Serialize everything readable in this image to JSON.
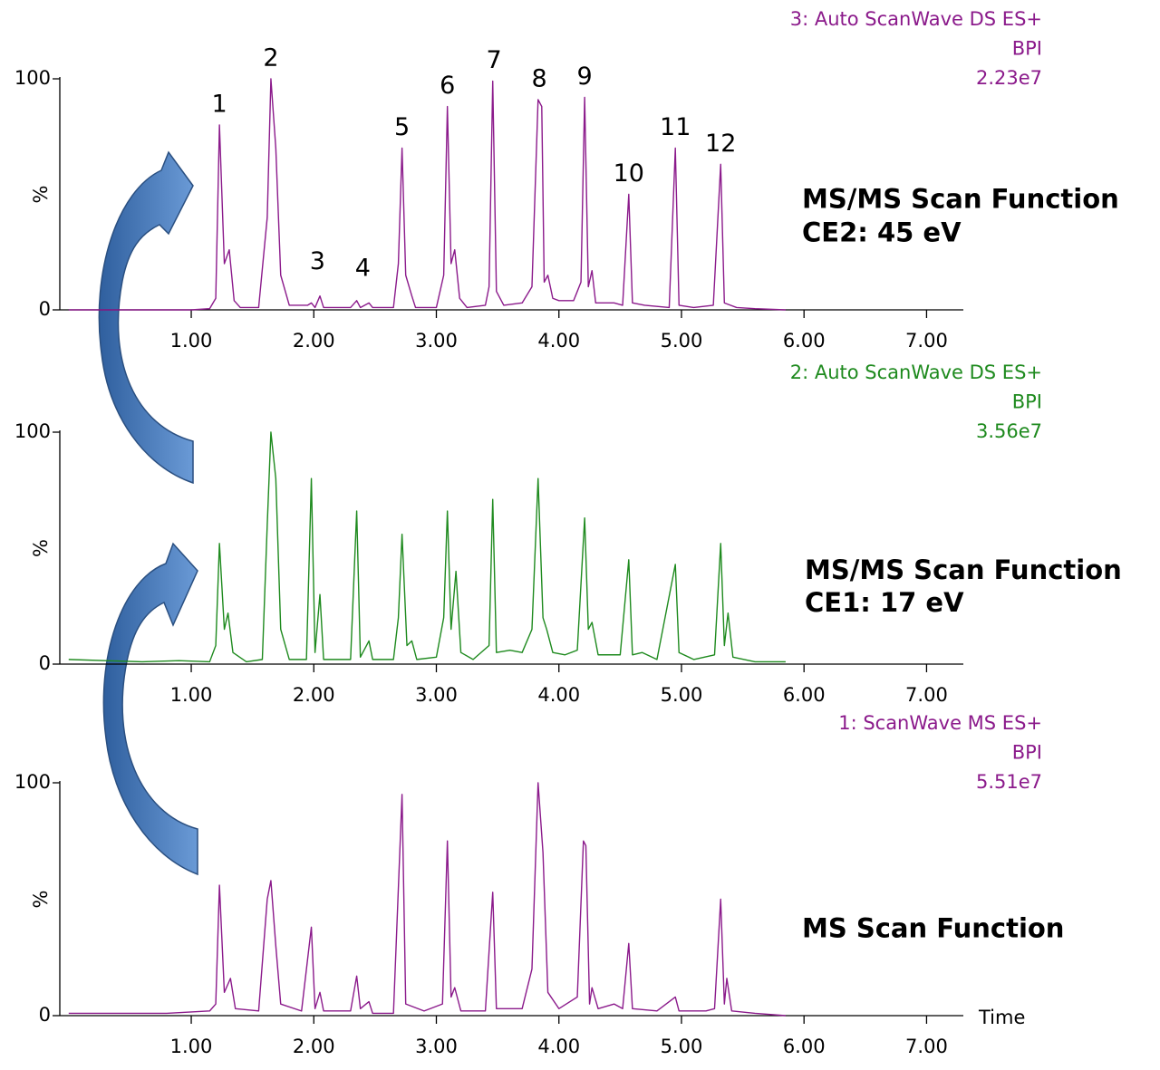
{
  "chart_data": [
    {
      "type": "line",
      "color": "#8b1a8b",
      "trace_label": [
        "3: Auto ScanWave DS ES+",
        "BPI",
        "2.23e7"
      ],
      "side_label": [
        "MS/MS Scan Function",
        "CE2: 45 eV"
      ],
      "ylabel": "%",
      "xlim": [
        0,
        7.3
      ],
      "ylim": [
        0,
        100
      ],
      "yticks": [
        0,
        100
      ],
      "xticks": [
        {
          "value": 1,
          "label": "1.00"
        },
        {
          "value": 2,
          "label": "2.00"
        },
        {
          "value": 3,
          "label": "3.00"
        },
        {
          "value": 4,
          "label": "4.00"
        },
        {
          "value": 5,
          "label": "5.00"
        },
        {
          "value": 6,
          "label": "6.00"
        },
        {
          "value": 7,
          "label": "7.00"
        }
      ],
      "x": [
        0,
        0.5,
        1,
        1.15,
        1.2,
        1.23,
        1.27,
        1.31,
        1.35,
        1.4,
        1.55,
        1.62,
        1.65,
        1.69,
        1.73,
        1.8,
        1.95,
        1.98,
        2.01,
        2.05,
        2.08,
        2.3,
        2.35,
        2.38,
        2.45,
        2.48,
        2.65,
        2.69,
        2.72,
        2.75,
        2.8,
        2.83,
        3,
        3.06,
        3.09,
        3.12,
        3.15,
        3.19,
        3.25,
        3.4,
        3.43,
        3.46,
        3.49,
        3.55,
        3.7,
        3.78,
        3.83,
        3.86,
        3.88,
        3.91,
        3.95,
        4,
        4.12,
        4.18,
        4.21,
        4.24,
        4.27,
        4.3,
        4.45,
        4.52,
        4.57,
        4.6,
        4.7,
        4.9,
        4.95,
        4.98,
        5.1,
        5.26,
        5.32,
        5.35,
        5.45,
        5.6,
        5.85
      ],
      "values": [
        0,
        0,
        0,
        0.5,
        5,
        80,
        20,
        26,
        4,
        1,
        1,
        40,
        100,
        70,
        15,
        2,
        2,
        3,
        1,
        6,
        1,
        1,
        4,
        1,
        3,
        1,
        1,
        20,
        70,
        15,
        6,
        1,
        1,
        15,
        88,
        20,
        26,
        5,
        1,
        2,
        10,
        99,
        8,
        2,
        3,
        10,
        91,
        88,
        12,
        15,
        5,
        4,
        4,
        12,
        92,
        10,
        17,
        3,
        3,
        2,
        50,
        3,
        2,
        1,
        70,
        2,
        1,
        2,
        63,
        3,
        1,
        0.5,
        0
      ],
      "annotations": [
        {
          "text": "1",
          "x": 1.23,
          "y": 80
        },
        {
          "text": "2",
          "x": 1.65,
          "y": 100
        },
        {
          "text": "3",
          "x": 2.03,
          "y": 12
        },
        {
          "text": "4",
          "x": 2.4,
          "y": 9
        },
        {
          "text": "5",
          "x": 2.72,
          "y": 70
        },
        {
          "text": "6",
          "x": 3.09,
          "y": 88
        },
        {
          "text": "7",
          "x": 3.47,
          "y": 99
        },
        {
          "text": "8",
          "x": 3.84,
          "y": 91
        },
        {
          "text": "9",
          "x": 4.21,
          "y": 92
        },
        {
          "text": "10",
          "x": 4.57,
          "y": 50
        },
        {
          "text": "11",
          "x": 4.95,
          "y": 70
        },
        {
          "text": "12",
          "x": 5.32,
          "y": 63
        }
      ]
    },
    {
      "type": "line",
      "color": "#1e8a1e",
      "trace_label": [
        "2: Auto ScanWave DS ES+",
        "BPI",
        "3.56e7"
      ],
      "side_label": [
        "MS/MS Scan Function",
        "CE1: 17 eV"
      ],
      "ylabel": "%",
      "xlim": [
        0,
        7.3
      ],
      "ylim": [
        0,
        100
      ],
      "yticks": [
        0,
        100
      ],
      "xticks": [
        {
          "value": 1,
          "label": "1.00"
        },
        {
          "value": 2,
          "label": "2.00"
        },
        {
          "value": 3,
          "label": "3.00"
        },
        {
          "value": 4,
          "label": "4.00"
        },
        {
          "value": 5,
          "label": "5.00"
        },
        {
          "value": 6,
          "label": "6.00"
        },
        {
          "value": 7,
          "label": "7.00"
        }
      ],
      "x": [
        0,
        0.3,
        0.6,
        0.9,
        1.15,
        1.2,
        1.23,
        1.27,
        1.3,
        1.34,
        1.45,
        1.58,
        1.62,
        1.65,
        1.69,
        1.73,
        1.8,
        1.94,
        1.98,
        2.01,
        2.05,
        2.08,
        2.3,
        2.35,
        2.38,
        2.45,
        2.48,
        2.65,
        2.69,
        2.72,
        2.76,
        2.8,
        2.84,
        3,
        3.06,
        3.09,
        3.12,
        3.16,
        3.2,
        3.3,
        3.43,
        3.46,
        3.49,
        3.6,
        3.7,
        3.78,
        3.83,
        3.87,
        3.9,
        3.95,
        4.05,
        4.15,
        4.21,
        4.24,
        4.27,
        4.32,
        4.5,
        4.57,
        4.6,
        4.68,
        4.8,
        4.95,
        4.98,
        5.1,
        5.27,
        5.32,
        5.35,
        5.38,
        5.42,
        5.6,
        5.85
      ],
      "values": [
        2,
        1.5,
        1,
        1.5,
        1,
        8,
        52,
        15,
        22,
        5,
        1,
        2,
        60,
        100,
        80,
        15,
        2,
        2,
        80,
        5,
        30,
        2,
        2,
        66,
        3,
        10,
        2,
        2,
        20,
        56,
        8,
        10,
        2,
        3,
        20,
        66,
        15,
        40,
        5,
        2,
        8,
        71,
        5,
        6,
        5,
        15,
        80,
        20,
        15,
        5,
        4,
        6,
        63,
        15,
        18,
        4,
        4,
        45,
        4,
        5,
        2,
        43,
        5,
        2,
        4,
        52,
        8,
        22,
        3,
        1,
        1
      ]
    },
    {
      "type": "line",
      "color": "#8b1a8b",
      "trace_label": [
        "1: ScanWave MS ES+",
        "BPI",
        "5.51e7"
      ],
      "side_label": [
        "MS Scan Function"
      ],
      "ylabel": "%",
      "xlabel": "Time",
      "xlim": [
        0,
        7.3
      ],
      "ylim": [
        0,
        100
      ],
      "yticks": [
        0,
        100
      ],
      "xticks": [
        {
          "value": 1,
          "label": "1.00"
        },
        {
          "value": 2,
          "label": "2.00"
        },
        {
          "value": 3,
          "label": "3.00"
        },
        {
          "value": 4,
          "label": "4.00"
        },
        {
          "value": 5,
          "label": "5.00"
        },
        {
          "value": 6,
          "label": "6.00"
        },
        {
          "value": 7,
          "label": "7.00"
        }
      ],
      "x": [
        0,
        0.4,
        0.8,
        1.15,
        1.2,
        1.23,
        1.27,
        1.32,
        1.36,
        1.55,
        1.62,
        1.65,
        1.69,
        1.73,
        1.9,
        1.98,
        2.01,
        2.05,
        2.08,
        2.3,
        2.35,
        2.38,
        2.45,
        2.48,
        2.65,
        2.72,
        2.75,
        2.9,
        3.05,
        3.09,
        3.12,
        3.15,
        3.2,
        3.4,
        3.46,
        3.49,
        3.7,
        3.78,
        3.83,
        3.87,
        3.91,
        4,
        4.15,
        4.2,
        4.22,
        4.25,
        4.27,
        4.32,
        4.45,
        4.52,
        4.57,
        4.6,
        4.8,
        4.95,
        4.98,
        5.2,
        5.27,
        5.32,
        5.35,
        5.37,
        5.41,
        5.6,
        5.85
      ],
      "values": [
        1,
        1,
        1,
        2,
        5,
        56,
        10,
        16,
        3,
        2,
        50,
        58,
        30,
        5,
        2,
        38,
        3,
        10,
        2,
        2,
        17,
        3,
        6,
        1,
        1,
        95,
        5,
        2,
        5,
        75,
        8,
        12,
        2,
        2,
        53,
        3,
        3,
        20,
        100,
        70,
        10,
        3,
        8,
        75,
        73,
        5,
        12,
        3,
        5,
        3,
        31,
        3,
        2,
        8,
        2,
        2,
        3,
        50,
        5,
        16,
        2,
        1,
        0
      ]
    }
  ]
}
